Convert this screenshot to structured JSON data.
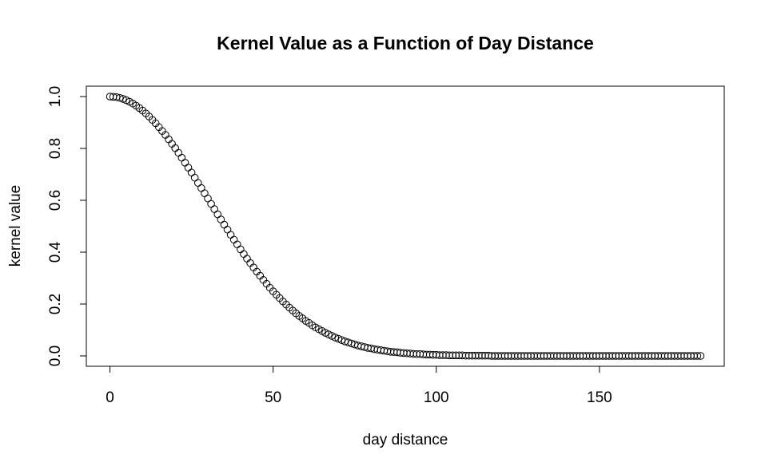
{
  "chart_data": {
    "type": "scatter",
    "title": "Kernel Value as a Function of Day Distance",
    "x_label": "day distance",
    "y_label": "kernel value",
    "x": [
      0,
      1,
      2,
      3,
      4,
      5,
      6,
      7,
      8,
      9,
      10,
      11,
      12,
      13,
      14,
      15,
      16,
      17,
      18,
      19,
      20,
      21,
      22,
      23,
      24,
      25,
      26,
      27,
      28,
      29,
      30,
      31,
      32,
      33,
      34,
      35,
      36,
      37,
      38,
      39,
      40,
      41,
      42,
      43,
      44,
      45,
      46,
      47,
      48,
      49,
      50,
      51,
      52,
      53,
      54,
      55,
      56,
      57,
      58,
      59,
      60,
      61,
      62,
      63,
      64,
      65,
      66,
      67,
      68,
      69,
      70,
      71,
      72,
      73,
      74,
      75,
      76,
      77,
      78,
      79,
      80,
      81,
      82,
      83,
      84,
      85,
      86,
      87,
      88,
      89,
      90,
      91,
      92,
      93,
      94,
      95,
      96,
      97,
      98,
      99,
      100,
      101,
      102,
      103,
      104,
      105,
      106,
      107,
      108,
      109,
      110,
      111,
      112,
      113,
      114,
      115,
      116,
      117,
      118,
      119,
      120,
      121,
      122,
      123,
      124,
      125,
      126,
      127,
      128,
      129,
      130,
      131,
      132,
      133,
      134,
      135,
      136,
      137,
      138,
      139,
      140,
      141,
      142,
      143,
      144,
      145,
      146,
      147,
      148,
      149,
      150,
      151,
      152,
      153,
      154,
      155,
      156,
      157,
      158,
      159,
      160,
      161,
      162,
      163,
      164,
      165,
      166,
      167,
      168,
      169,
      170,
      171,
      172,
      173,
      174,
      175,
      176,
      177,
      178,
      179,
      180,
      181
    ],
    "values": [
      1,
      0.999,
      0.998,
      0.995,
      0.991,
      0.986,
      0.98,
      0.973,
      0.965,
      0.956,
      0.946,
      0.935,
      0.923,
      0.91,
      0.897,
      0.882,
      0.867,
      0.852,
      0.835,
      0.818,
      0.801,
      0.783,
      0.764,
      0.745,
      0.726,
      0.707,
      0.687,
      0.667,
      0.647,
      0.627,
      0.607,
      0.586,
      0.566,
      0.546,
      0.526,
      0.506,
      0.487,
      0.467,
      0.448,
      0.43,
      0.411,
      0.393,
      0.375,
      0.358,
      0.341,
      0.325,
      0.309,
      0.293,
      0.278,
      0.263,
      0.249,
      0.236,
      0.223,
      0.21,
      0.198,
      0.186,
      0.175,
      0.164,
      0.154,
      0.145,
      0.135,
      0.127,
      0.118,
      0.11,
      0.103,
      0.096,
      0.089,
      0.083,
      0.077,
      0.071,
      0.066,
      0.061,
      0.056,
      0.052,
      0.048,
      0.044,
      0.04,
      0.037,
      0.034,
      0.031,
      0.029,
      0.026,
      0.024,
      0.022,
      0.02,
      0.018,
      0.016,
      0.015,
      0.014,
      0.012,
      0.011,
      0.01,
      0.009,
      0.008,
      0.007,
      0.007,
      0.006,
      0.005,
      0.005,
      0.004,
      0.004,
      0.003,
      0.003,
      0.003,
      0.002,
      0.002,
      0.002,
      0.002,
      0.002,
      0.001,
      0.001,
      0.001,
      0.001,
      0.001,
      0.001,
      0.001,
      0.001,
      0,
      0,
      0,
      0,
      0,
      0,
      0,
      0,
      0,
      0,
      0,
      0,
      0,
      0,
      0,
      0,
      0,
      0,
      0,
      0,
      0,
      0,
      0,
      0,
      0,
      0,
      0,
      0,
      0,
      0,
      0,
      0,
      0,
      0,
      0,
      0,
      0,
      0,
      0,
      0,
      0,
      0,
      0,
      0,
      0,
      0,
      0,
      0,
      0,
      0,
      0,
      0,
      0,
      0,
      0,
      0,
      0,
      0,
      0,
      0,
      0,
      0,
      0,
      0,
      0
    ],
    "color": "#000000",
    "xlim": [
      -7.24,
      188.24
    ],
    "xticks": [
      0,
      50,
      100,
      150
    ],
    "ylim": [
      -0.04,
      1.04
    ],
    "yticks": [
      {
        "value": 0,
        "label": "0.0"
      },
      {
        "value": 0.2,
        "label": "0.2"
      },
      {
        "value": 0.4,
        "label": "0.4"
      },
      {
        "value": 0.6,
        "label": "0.6"
      },
      {
        "value": 0.8,
        "label": "0.8"
      },
      {
        "value": 1,
        "label": "1.0"
      }
    ]
  }
}
